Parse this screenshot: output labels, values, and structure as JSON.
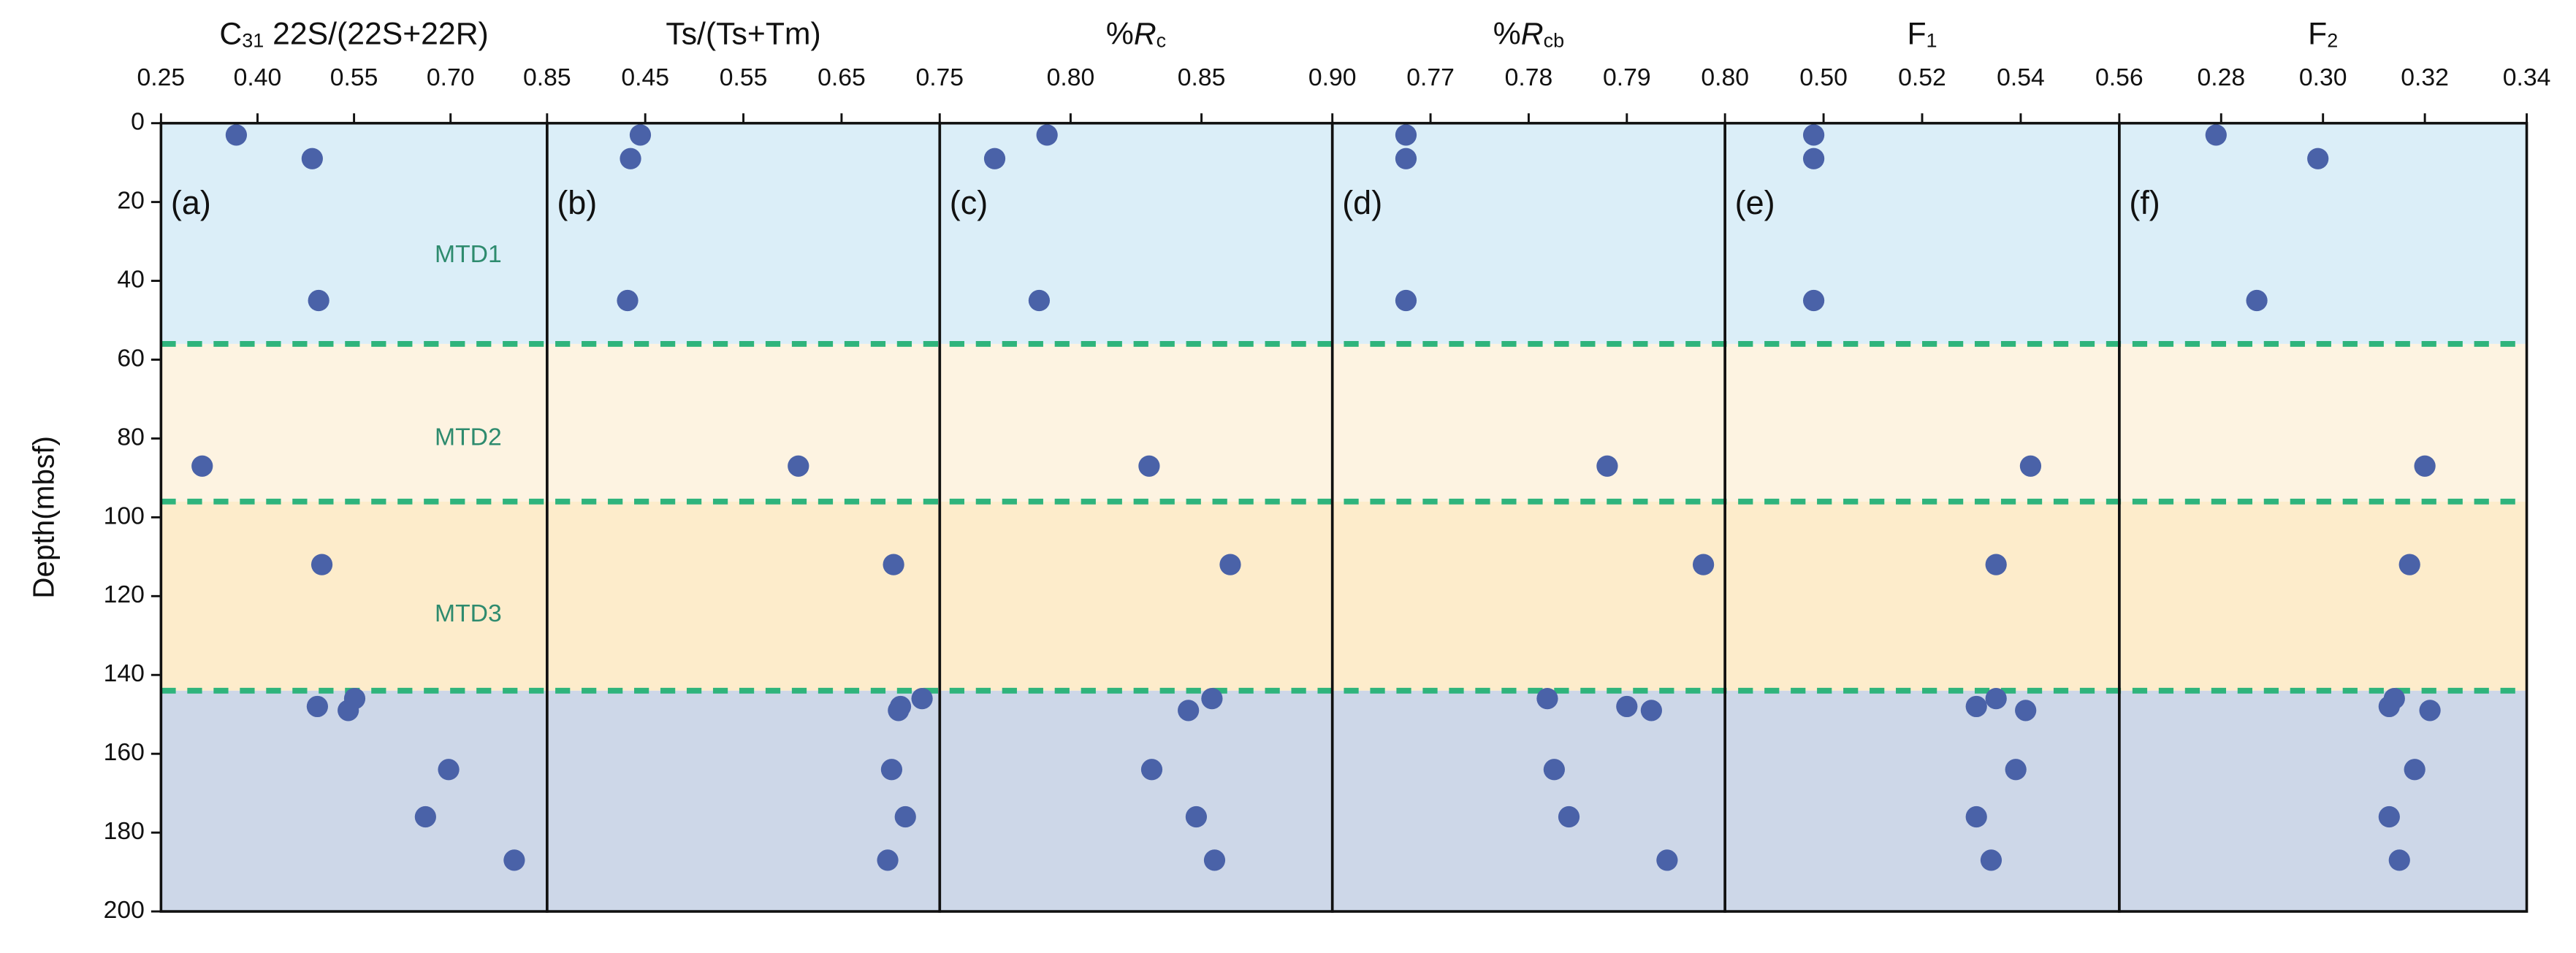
{
  "zones": [
    {
      "label": "MTD1",
      "top": 0,
      "bottom": 56,
      "color": "#dbeef8"
    },
    {
      "label": "MTD2",
      "top": 56,
      "bottom": 96,
      "color": "#fdf3e1"
    },
    {
      "label": "MTD3",
      "top": 96,
      "bottom": 144,
      "color": "#fdeccb"
    },
    {
      "top": 144,
      "bottom": 200,
      "color": "#cdd7e8"
    }
  ],
  "zone_label_color": "#2e8b6e",
  "boundary_color": "#2fb47c",
  "chart_data": [
    {
      "type": "scatter",
      "label": "(a)",
      "title": [
        {
          "text": "C"
        },
        {
          "text": "31",
          "sub": true
        },
        {
          "text": " 22S/(22S+22R)"
        }
      ],
      "y_label": "Depth(mbsf)",
      "y_inverted": true,
      "xlim": [
        0.25,
        0.85
      ],
      "xticks": [
        0.25,
        {
          "value": 0.4,
          "label": "0.40"
        },
        0.55,
        {
          "value": 0.7,
          "label": "0.70"
        },
        0.85
      ],
      "ylim": [
        0,
        200
      ],
      "yticks": [
        0,
        20,
        40,
        60,
        80,
        100,
        120,
        140,
        160,
        180,
        200
      ],
      "color": "#4a62a8",
      "x": [
        0.367,
        0.485,
        0.495,
        0.314,
        0.5,
        0.551,
        0.493,
        0.541,
        0.697,
        0.661,
        0.799
      ],
      "y": [
        3,
        9,
        45,
        87,
        112,
        146,
        148,
        149,
        164,
        176,
        187
      ]
    },
    {
      "type": "scatter",
      "label": "(b)",
      "title": [
        {
          "text": "Ts/(Ts+Tm)"
        }
      ],
      "y_inverted": true,
      "xlim": [
        0.35,
        0.75
      ],
      "xticks": [
        0.45,
        0.55,
        0.65,
        0.75
      ],
      "ylim": [
        0,
        200
      ],
      "color": "#4a62a8",
      "x": [
        0.445,
        0.435,
        0.432,
        0.606,
        0.703,
        0.732,
        0.71,
        0.708,
        0.701,
        0.715,
        0.697
      ],
      "y": [
        3,
        9,
        45,
        87,
        112,
        146,
        148,
        149,
        164,
        176,
        187
      ]
    },
    {
      "type": "scatter",
      "label": "(c)",
      "title": [
        {
          "text": "%"
        },
        {
          "text": "R",
          "italic": true
        },
        {
          "text": "c",
          "sub": true
        }
      ],
      "y_inverted": true,
      "xlim": [
        0.75,
        0.9
      ],
      "xticks": [
        {
          "value": 0.8,
          "label": "0.80"
        },
        0.85,
        {
          "value": 0.9,
          "label": "0.90"
        }
      ],
      "ylim": [
        0,
        200
      ],
      "color": "#4a62a8",
      "x": [
        0.791,
        0.771,
        0.788,
        0.83,
        0.861,
        0.854,
        0.845,
        0.831,
        0.848,
        0.855
      ],
      "y": [
        3,
        9,
        45,
        87,
        112,
        146,
        149,
        164,
        176,
        187
      ]
    },
    {
      "type": "scatter",
      "label": "(d)",
      "title": [
        {
          "text": "%"
        },
        {
          "text": "R",
          "italic": true
        },
        {
          "text": "cb",
          "sub": true
        }
      ],
      "y_inverted": true,
      "xlim": [
        0.76,
        0.8
      ],
      "xticks": [
        0.77,
        0.78,
        0.79,
        {
          "value": 0.8,
          "label": "0.80"
        }
      ],
      "ylim": [
        0,
        200
      ],
      "color": "#4a62a8",
      "x": [
        0.7675,
        0.7675,
        0.7675,
        0.788,
        0.7978,
        0.7819,
        0.79,
        0.7925,
        0.7826,
        0.7841,
        0.7941
      ],
      "y": [
        3,
        9,
        45,
        87,
        112,
        146,
        148,
        149,
        164,
        176,
        187
      ]
    },
    {
      "type": "scatter",
      "label": "(e)",
      "title": [
        {
          "text": "F"
        },
        {
          "text": "1",
          "sub": true
        }
      ],
      "y_inverted": true,
      "xlim": [
        0.48,
        0.56
      ],
      "xticks": [
        {
          "value": 0.5,
          "label": "0.50"
        },
        0.52,
        0.54,
        0.56
      ],
      "ylim": [
        0,
        200
      ],
      "color": "#4a62a8",
      "x": [
        0.498,
        0.498,
        0.498,
        0.542,
        0.535,
        0.535,
        0.531,
        0.541,
        0.539,
        0.531,
        0.534
      ],
      "y": [
        3,
        9,
        45,
        87,
        112,
        146,
        148,
        149,
        164,
        176,
        187
      ]
    },
    {
      "type": "scatter",
      "label": "(f)",
      "title": [
        {
          "text": "F"
        },
        {
          "text": "2",
          "sub": true
        }
      ],
      "y_inverted": true,
      "xlim": [
        0.26,
        0.34
      ],
      "xticks": [
        0.28,
        {
          "value": 0.3,
          "label": "0.30"
        },
        0.32,
        0.34
      ],
      "ylim": [
        0,
        200
      ],
      "color": "#4a62a8",
      "x": [
        0.279,
        0.299,
        0.287,
        0.32,
        0.317,
        0.314,
        0.313,
        0.321,
        0.318,
        0.313,
        0.315
      ],
      "y": [
        3,
        9,
        45,
        87,
        112,
        146,
        148,
        149,
        164,
        176,
        187
      ]
    }
  ]
}
